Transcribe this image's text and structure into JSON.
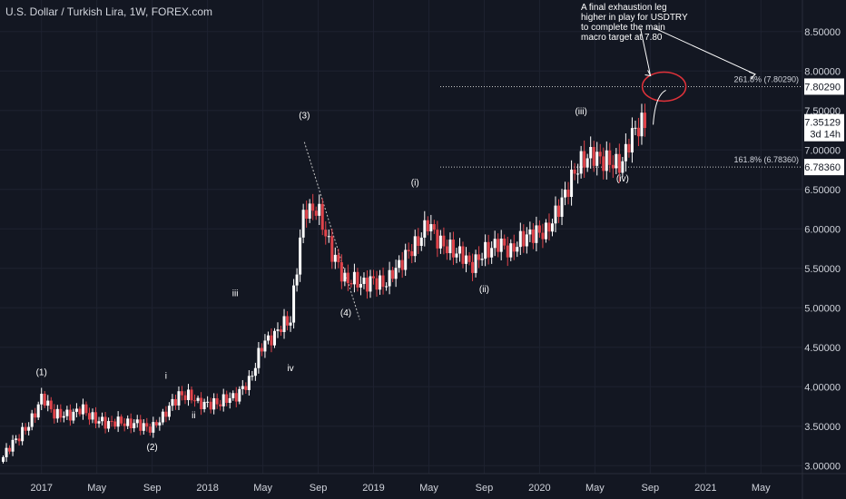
{
  "chart_title": "U.S. Dollar / Turkish Lira, 1W, FOREX.com",
  "annotation_note": [
    "A final exhaustion leg",
    "higher in play for USDTRY",
    "to complete the main",
    "macro target at 7.80"
  ],
  "colors": {
    "background": "#131722",
    "axis_text": "#d1d4dc",
    "grid": "#1e2230",
    "up": "#ffffff",
    "down": "#e0434a",
    "annotation_circle": "#e0323a",
    "dotted_level": "#c8c8c8"
  },
  "chart_data": {
    "type": "candlestick",
    "title": "U.S. Dollar / Turkish Lira, 1W, FOREX.com",
    "symbol": "USDTRY",
    "interval": "1W",
    "ylim": [
      2.9,
      8.9
    ],
    "y_ticks": [
      "3.00000",
      "3.50000",
      "4.00000",
      "4.50000",
      "5.00000",
      "5.50000",
      "6.00000",
      "6.50000",
      "7.00000",
      "7.50000",
      "8.00000",
      "8.50000"
    ],
    "x_ticks": [
      "2017",
      "May",
      "Sep",
      "2018",
      "May",
      "Sep",
      "2019",
      "May",
      "Sep",
      "2020",
      "May",
      "Sep",
      "2021",
      "May"
    ],
    "x_tick_dates": [
      "2017-01",
      "2017-05",
      "2017-09",
      "2018-01",
      "2018-05",
      "2018-09",
      "2019-01",
      "2019-05",
      "2019-09",
      "2020-01",
      "2020-05",
      "2020-09",
      "2021-01",
      "2021-05"
    ],
    "xlim": [
      "2016-10",
      "2021-08"
    ],
    "price_path": [
      [
        "2016-10",
        3.05
      ],
      [
        "2016-11",
        3.3
      ],
      [
        "2016-12",
        3.5
      ],
      [
        "2017-01",
        3.85
      ],
      [
        "2017-02",
        3.65
      ],
      [
        "2017-03",
        3.65
      ],
      [
        "2017-04",
        3.7
      ],
      [
        "2017-05",
        3.58
      ],
      [
        "2017-06",
        3.53
      ],
      [
        "2017-07",
        3.55
      ],
      [
        "2017-08",
        3.53
      ],
      [
        "2017-09",
        3.45
      ],
      [
        "2017-10",
        3.7
      ],
      [
        "2017-11",
        3.9
      ],
      [
        "2017-12",
        3.85
      ],
      [
        "2018-01",
        3.77
      ],
      [
        "2018-02",
        3.8
      ],
      [
        "2018-03",
        3.9
      ],
      [
        "2018-04",
        4.05
      ],
      [
        "2018-05",
        4.55
      ],
      [
        "2018-06",
        4.7
      ],
      [
        "2018-07",
        4.85
      ],
      [
        "2018-08",
        6.3
      ],
      [
        "2018-09",
        6.2
      ],
      [
        "2018-10",
        5.7
      ],
      [
        "2018-11",
        5.35
      ],
      [
        "2018-12",
        5.3
      ],
      [
        "2019-01",
        5.35
      ],
      [
        "2019-02",
        5.3
      ],
      [
        "2019-03",
        5.6
      ],
      [
        "2019-04",
        5.8
      ],
      [
        "2019-05",
        6.05
      ],
      [
        "2019-06",
        5.8
      ],
      [
        "2019-07",
        5.7
      ],
      [
        "2019-08",
        5.55
      ],
      [
        "2019-09",
        5.7
      ],
      [
        "2019-10",
        5.8
      ],
      [
        "2019-11",
        5.75
      ],
      [
        "2019-12",
        5.9
      ],
      [
        "2020-01",
        5.95
      ],
      [
        "2020-02",
        6.1
      ],
      [
        "2020-03",
        6.5
      ],
      [
        "2020-04",
        6.9
      ],
      [
        "2020-05",
        6.9
      ],
      [
        "2020-06",
        6.85
      ],
      [
        "2020-07",
        6.85
      ],
      [
        "2020-08",
        7.3
      ],
      [
        "2020-08-20",
        7.35
      ]
    ],
    "last_price": "7.35129",
    "countdown": "3d 14h",
    "levels": [
      {
        "label": "261.8% (7.80290)",
        "tag": "7.80290",
        "value": 7.8029
      },
      {
        "label": "161.8% (6.78360)",
        "tag": "6.78360",
        "value": 6.7836
      }
    ],
    "wave_labels": [
      {
        "label": "(1)",
        "date": "2017-01",
        "price": 4.15
      },
      {
        "label": "(2)",
        "date": "2017-09",
        "price": 3.2
      },
      {
        "label": "i",
        "date": "2017-10",
        "price": 4.1
      },
      {
        "label": "ii",
        "date": "2017-12",
        "price": 3.6
      },
      {
        "label": "iii",
        "date": "2018-03",
        "price": 5.15
      },
      {
        "label": "iv",
        "date": "2018-07",
        "price": 4.2
      },
      {
        "label": "(3)",
        "date": "2018-08",
        "price": 7.4
      },
      {
        "label": "(4)",
        "date": "2018-11",
        "price": 4.9
      },
      {
        "label": "(i)",
        "date": "2019-04",
        "price": 6.55
      },
      {
        "label": "(ii)",
        "date": "2019-09",
        "price": 5.2
      },
      {
        "label": "(iii)",
        "date": "2020-04",
        "price": 7.45
      },
      {
        "label": "(iv)",
        "date": "2020-07",
        "price": 6.6
      }
    ],
    "trendline": {
      "from": [
        "2018-08",
        7.1
      ],
      "to": [
        "2018-12",
        4.85
      ]
    }
  }
}
